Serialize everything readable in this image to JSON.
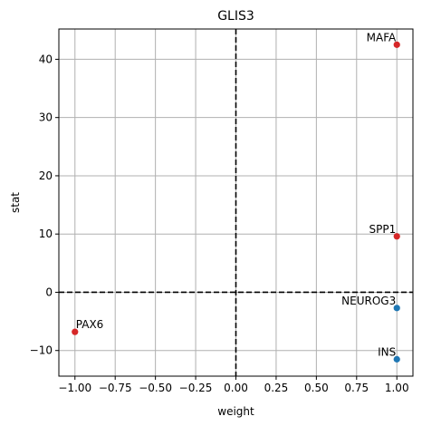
{
  "chart_data": {
    "type": "scatter",
    "title": "GLIS3",
    "xlabel": "weight",
    "ylabel": "stat",
    "xlim": [
      -1.1,
      1.1
    ],
    "ylim": [
      -14.4,
      45.2
    ],
    "grid": true,
    "x_ticks": [
      -1.0,
      -0.75,
      -0.5,
      -0.25,
      0.0,
      0.25,
      0.5,
      0.75,
      1.0
    ],
    "x_tick_labels": [
      "−1.00",
      "−0.75",
      "−0.50",
      "−0.25",
      "0.00",
      "0.25",
      "0.50",
      "0.75",
      "1.00"
    ],
    "y_ticks": [
      -10,
      0,
      10,
      20,
      30,
      40
    ],
    "y_tick_labels": [
      "−10",
      "0",
      "10",
      "20",
      "30",
      "40"
    ],
    "reference_lines": {
      "x": 0,
      "y": 0,
      "style": "dashed",
      "color": "#000000"
    },
    "colors": {
      "positive": "#d62728",
      "negative": "#1f77b4",
      "grid": "#b0b0b0"
    },
    "points": [
      {
        "label": "MAFA",
        "x": 1.0,
        "y": 42.5,
        "color": "#d62728",
        "label_anchor": "end"
      },
      {
        "label": "SPP1",
        "x": 1.0,
        "y": 9.6,
        "color": "#d62728",
        "label_anchor": "end"
      },
      {
        "label": "NEUROG3",
        "x": 1.0,
        "y": -2.7,
        "color": "#1f77b4",
        "label_anchor": "end"
      },
      {
        "label": "INS",
        "x": 1.0,
        "y": -11.5,
        "color": "#1f77b4",
        "label_anchor": "end"
      },
      {
        "label": "PAX6",
        "x": -1.0,
        "y": -6.8,
        "color": "#d62728",
        "label_anchor": "start"
      }
    ]
  }
}
